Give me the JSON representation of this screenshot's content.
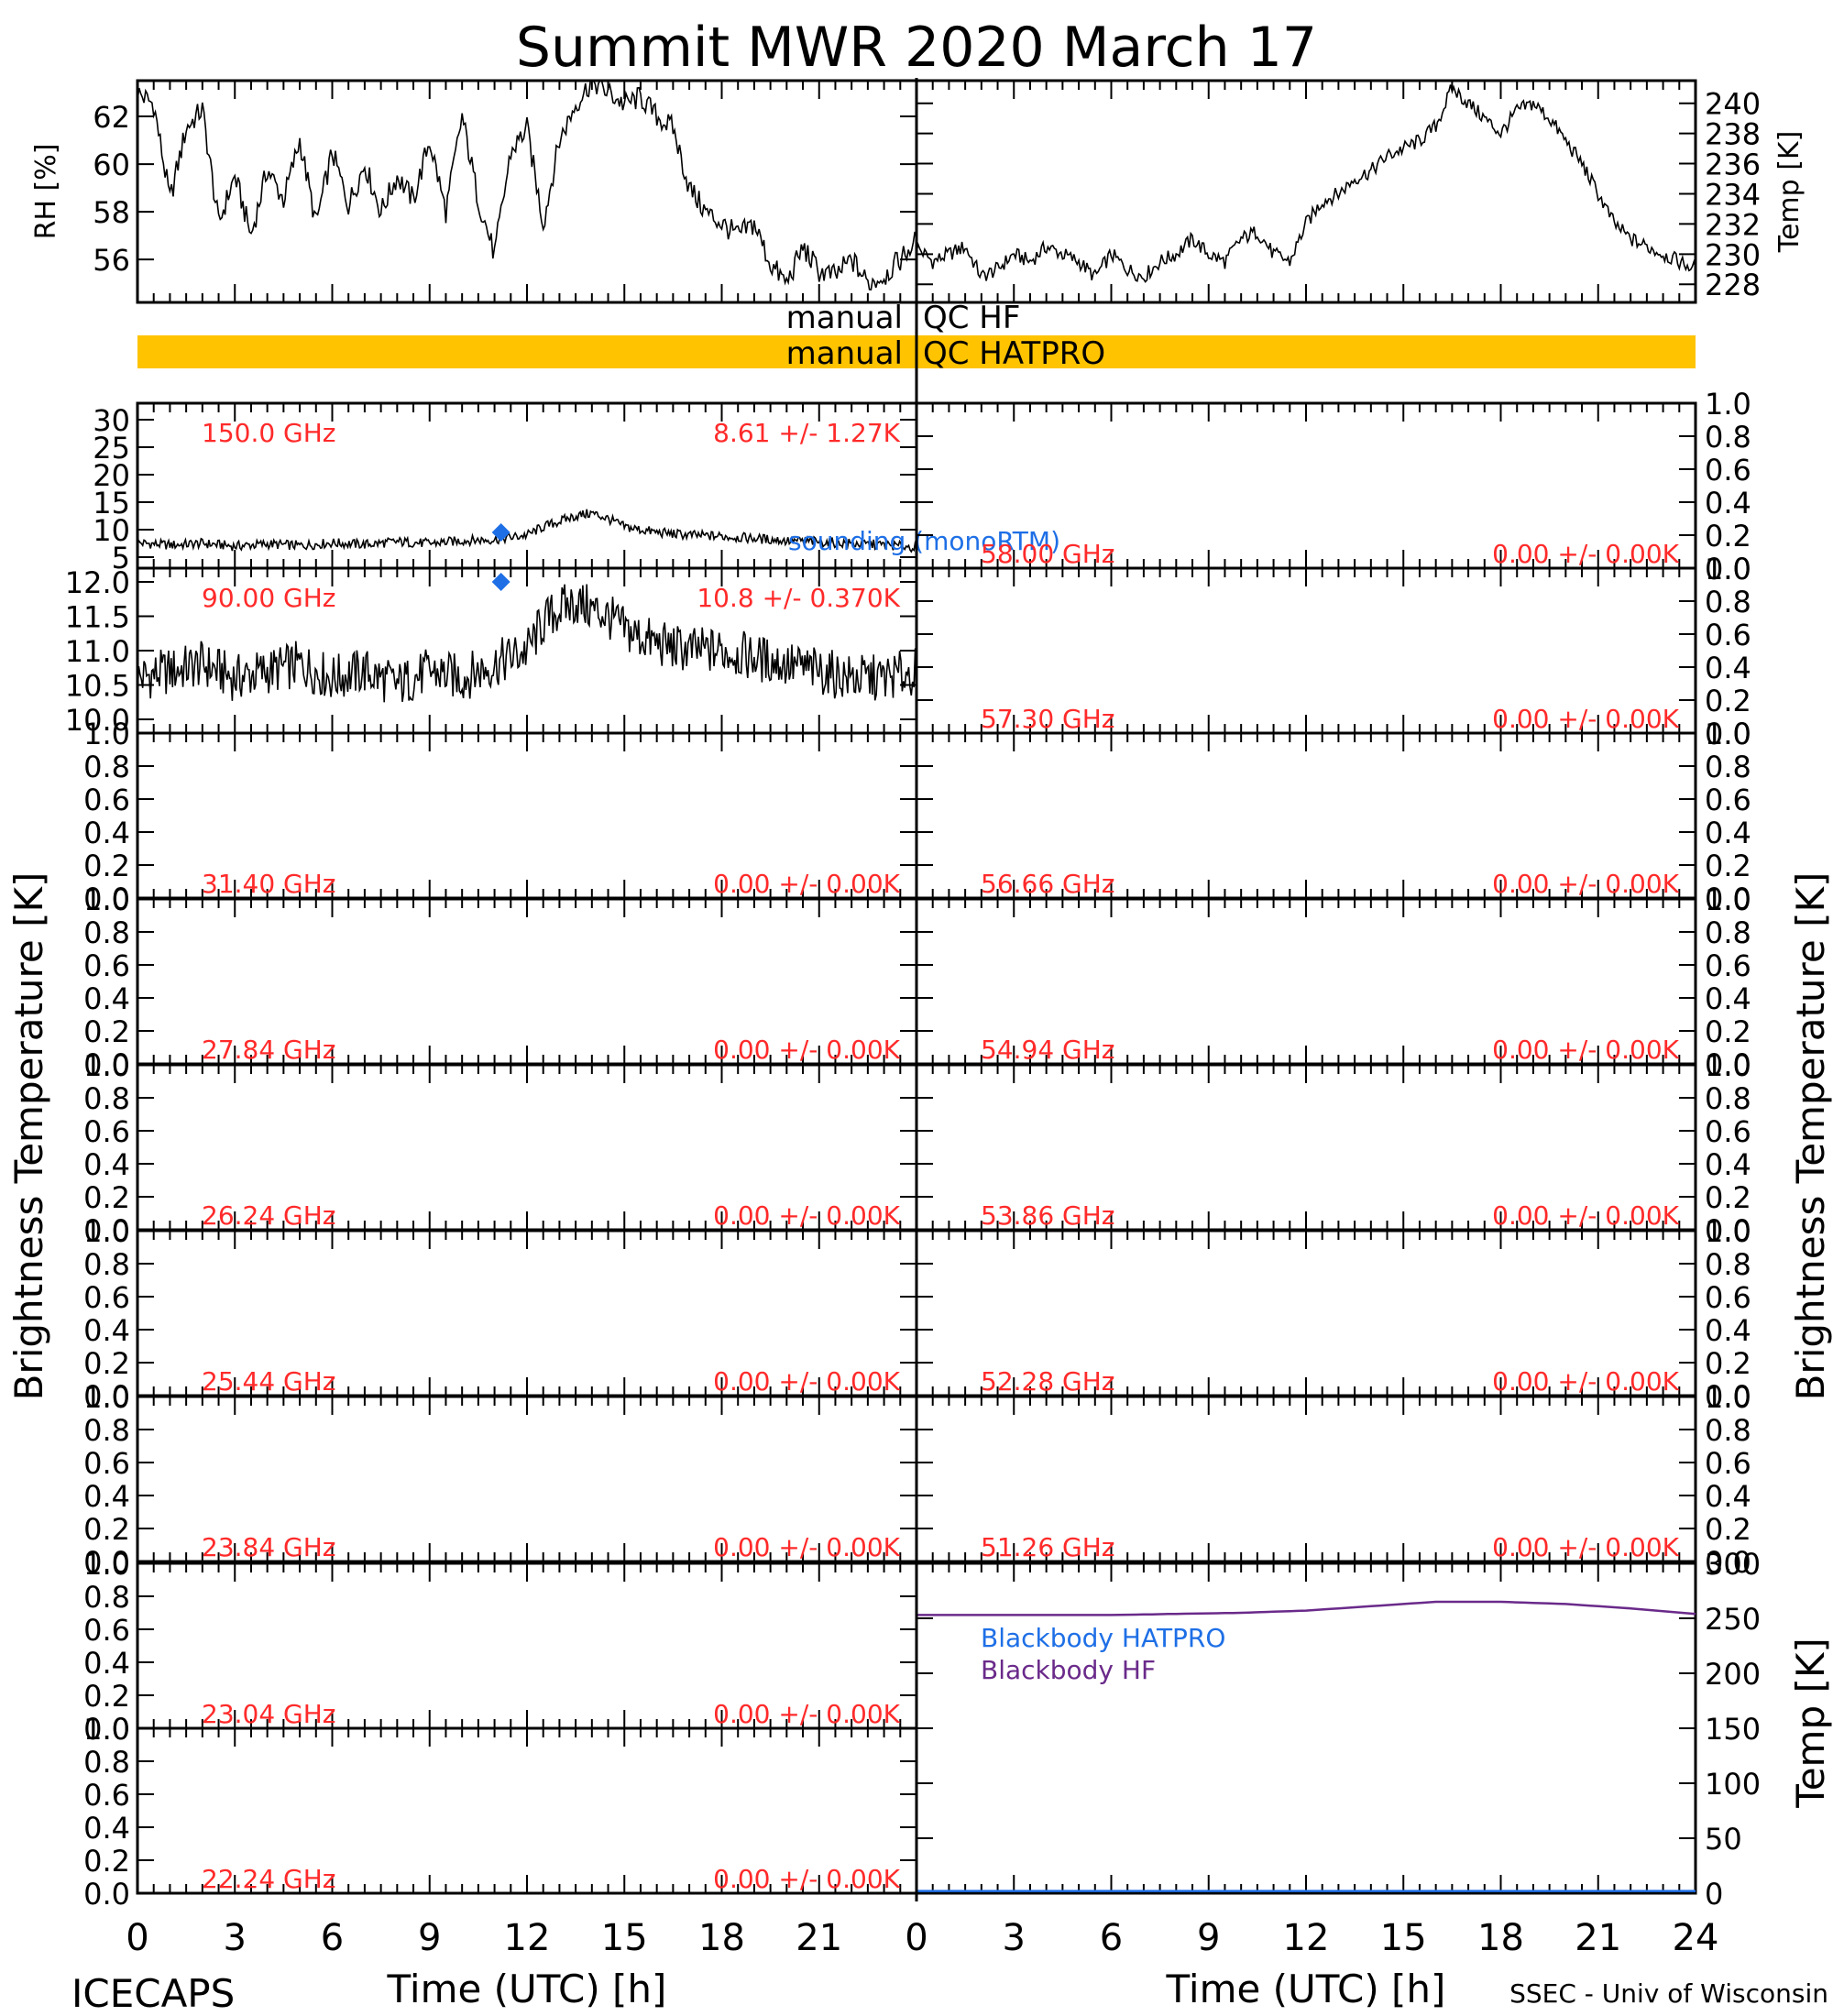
{
  "title": "Summit MWR 2020 March 17",
  "footer": {
    "left": "ICECAPS",
    "right": "SSEC - Univ of Wisconsin"
  },
  "xaxis": {
    "label": "Time (UTC) [h]",
    "ticks": [
      0,
      3,
      6,
      9,
      12,
      15,
      18,
      21,
      24
    ],
    "left_ticks_shown": [
      "0",
      "3",
      "6",
      "9",
      "12",
      "15",
      "18",
      "21"
    ],
    "right_ticks_shown": [
      "0",
      "3",
      "6",
      "9",
      "12",
      "15",
      "18",
      "21",
      "24"
    ]
  },
  "left_ylabel": "Brightness Temperature [K]",
  "right_ylabel": "Brightness Temperature [K]",
  "qc": {
    "hf_left": "manual",
    "hf_right": "QC HF",
    "hatpro_left": "manual",
    "hatpro_right": "QC HATPRO",
    "hatpro_color": "#FFC300"
  },
  "colors": {
    "annotation": "#FF2A2A",
    "sounding": "#1E6FE6",
    "blackbody_hf": "#6A2A8A",
    "blackbody_hatpro": "#1E6FE6",
    "trace": "#000000"
  },
  "chart_data": [
    {
      "id": "rh",
      "type": "line",
      "ylabel": "RH [%]",
      "ylim": [
        54.2,
        63.5
      ],
      "yticks": [
        56,
        58,
        60,
        62
      ],
      "x": [
        0,
        0.5,
        1,
        1.5,
        2,
        2.5,
        3,
        3.5,
        4,
        4.5,
        5,
        5.5,
        6,
        6.5,
        7,
        7.5,
        8,
        8.5,
        9,
        9.5,
        10,
        10.5,
        11,
        11.5,
        12,
        12.5,
        13,
        13.5,
        14,
        14.5,
        15,
        15.5,
        16,
        16.5,
        17,
        17.5,
        18,
        18.5,
        19,
        19.5,
        20,
        20.5,
        21,
        21.5,
        22,
        22.5,
        23,
        23.5,
        24
      ],
      "values": [
        63.0,
        62.5,
        58.5,
        61.5,
        62.3,
        57.5,
        59.5,
        57.0,
        59.8,
        58.5,
        61.0,
        57.5,
        60.5,
        58.3,
        60.0,
        58.0,
        59.5,
        58.5,
        61.0,
        58.0,
        62.0,
        58.5,
        56.2,
        60.5,
        61.5,
        57.5,
        61.0,
        62.5,
        63.5,
        63.0,
        62.5,
        62.8,
        62.0,
        61.5,
        59.0,
        58.0,
        57.5,
        57.0,
        57.5,
        55.8,
        55.0,
        56.5,
        55.5,
        55.3,
        56.0,
        55.0,
        55.3,
        56.0,
        56.8
      ]
    },
    {
      "id": "temp",
      "type": "line",
      "ylabel": "Temp [K]",
      "ylim": [
        226.8,
        241.5
      ],
      "yticks": [
        228,
        230,
        232,
        234,
        236,
        238,
        240
      ],
      "x": [
        0,
        0.5,
        1,
        1.5,
        2,
        2.5,
        3,
        3.5,
        4,
        4.5,
        5,
        5.5,
        6,
        6.5,
        7,
        7.5,
        8,
        8.5,
        9,
        9.5,
        10,
        10.5,
        11,
        11.5,
        12,
        12.5,
        13,
        13.5,
        14,
        14.5,
        15,
        15.5,
        16,
        16.5,
        17,
        17.5,
        18,
        18.5,
        19,
        19.5,
        20,
        20.5,
        21,
        21.5,
        22,
        22.5,
        23,
        23.5,
        24
      ],
      "values": [
        230.5,
        229.5,
        230.0,
        230.5,
        228.5,
        229.0,
        230.0,
        229.5,
        230.5,
        230.0,
        229.5,
        228.5,
        230.0,
        229.0,
        228.5,
        229.5,
        230.0,
        231.0,
        230.0,
        229.5,
        231.0,
        231.5,
        230.0,
        229.5,
        232.0,
        233.5,
        234.0,
        235.0,
        235.5,
        236.5,
        237.0,
        237.5,
        238.5,
        241.0,
        240.0,
        239.0,
        238.0,
        239.5,
        240.0,
        239.0,
        237.5,
        236.0,
        234.0,
        232.0,
        231.0,
        230.5,
        230.0,
        229.5,
        229.0
      ]
    },
    {
      "id": "ch150",
      "type": "line",
      "ylim": [
        3,
        33
      ],
      "yticks": [
        5,
        10,
        15,
        20,
        25,
        30
      ],
      "freq_label": "150.0 GHz",
      "stat_label": "8.61 +/-  1.27K",
      "extra_label": "sounding (monoRTM)",
      "sounding_point": {
        "x": 11.2,
        "y": 9.5
      },
      "x": [
        0,
        1,
        2,
        3,
        4,
        5,
        6,
        7,
        8,
        9,
        10,
        11,
        12,
        12.5,
        13,
        13.5,
        14,
        14.5,
        15,
        16,
        17,
        18,
        19,
        20,
        21,
        22,
        23,
        24
      ],
      "values": [
        7.6,
        7.2,
        7.5,
        7.0,
        7.4,
        7.1,
        7.6,
        7.3,
        7.8,
        7.5,
        8.0,
        8.2,
        9.0,
        10.5,
        11.5,
        12.5,
        13.0,
        12.0,
        10.5,
        9.5,
        9.0,
        8.8,
        8.4,
        8.0,
        7.8,
        7.5,
        7.2,
        6.8
      ]
    },
    {
      "id": "ch90",
      "type": "line",
      "ylim": [
        9.8,
        12.2
      ],
      "yticks": [
        10.0,
        10.5,
        11.0,
        11.5,
        12.0
      ],
      "freq_label": "90.00 GHz",
      "stat_label": "10.8 +/- 0.370K",
      "sounding_point": {
        "x": 11.2,
        "y": 12.0
      },
      "x": [
        0,
        1,
        2,
        3,
        4,
        5,
        6,
        7,
        8,
        9,
        10,
        11,
        12,
        12.5,
        13,
        13.5,
        14,
        14.5,
        15,
        16,
        17,
        18,
        19,
        20,
        21,
        22,
        23,
        24
      ],
      "values": [
        10.6,
        10.7,
        10.8,
        10.6,
        10.7,
        10.8,
        10.6,
        10.7,
        10.5,
        10.7,
        10.6,
        10.8,
        11.0,
        11.4,
        11.6,
        11.7,
        11.6,
        11.5,
        11.3,
        11.1,
        11.0,
        11.0,
        10.9,
        10.8,
        10.7,
        10.6,
        10.6,
        10.7
      ]
    },
    {
      "id": "ch3140",
      "type": "line",
      "ylim": [
        0,
        1
      ],
      "yticks": [
        0.0,
        0.2,
        0.4,
        0.6,
        0.8,
        1.0
      ],
      "freq_label": "31.40 GHz",
      "stat_label": "0.00 +/-  0.00K",
      "values": []
    },
    {
      "id": "ch2784",
      "type": "line",
      "ylim": [
        0,
        1
      ],
      "yticks": [
        0.0,
        0.2,
        0.4,
        0.6,
        0.8,
        1.0
      ],
      "freq_label": "27.84 GHz",
      "stat_label": "0.00 +/-  0.00K",
      "values": []
    },
    {
      "id": "ch2624",
      "type": "line",
      "ylim": [
        0,
        1
      ],
      "yticks": [
        0.0,
        0.2,
        0.4,
        0.6,
        0.8,
        1.0
      ],
      "freq_label": "26.24 GHz",
      "stat_label": "0.00 +/-  0.00K",
      "values": []
    },
    {
      "id": "ch2544",
      "type": "line",
      "ylim": [
        0,
        1
      ],
      "yticks": [
        0.0,
        0.2,
        0.4,
        0.6,
        0.8,
        1.0
      ],
      "freq_label": "25.44 GHz",
      "stat_label": "0.00 +/-  0.00K",
      "values": []
    },
    {
      "id": "ch2384",
      "type": "line",
      "ylim": [
        0,
        1
      ],
      "yticks": [
        0.0,
        0.2,
        0.4,
        0.6,
        0.8,
        1.0
      ],
      "freq_label": "23.84 GHz",
      "stat_label": "0.00 +/-  0.00K",
      "values": []
    },
    {
      "id": "ch2304",
      "type": "line",
      "ylim": [
        0,
        1
      ],
      "yticks": [
        0.0,
        0.2,
        0.4,
        0.6,
        0.8,
        1.0
      ],
      "freq_label": "23.04 GHz",
      "stat_label": "0.00 +/-  0.00K",
      "values": []
    },
    {
      "id": "ch2224",
      "type": "line",
      "ylim": [
        0,
        1
      ],
      "yticks": [
        0.0,
        0.2,
        0.4,
        0.6,
        0.8,
        1.0
      ],
      "freq_label": "22.24 GHz",
      "stat_label": "0.00 +/-  0.00K",
      "values": []
    },
    {
      "id": "ch5800",
      "type": "line",
      "ylim": [
        0,
        1
      ],
      "yticks": [
        0.0,
        0.2,
        0.4,
        0.6,
        0.8,
        1.0
      ],
      "freq_label": "58.00 GHz",
      "stat_label": "0.00 +/-  0.00K",
      "values": []
    },
    {
      "id": "ch5730",
      "type": "line",
      "ylim": [
        0,
        1
      ],
      "yticks": [
        0.0,
        0.2,
        0.4,
        0.6,
        0.8,
        1.0
      ],
      "freq_label": "57.30 GHz",
      "stat_label": "0.00 +/-  0.00K",
      "values": []
    },
    {
      "id": "ch5666",
      "type": "line",
      "ylim": [
        0,
        1
      ],
      "yticks": [
        0.0,
        0.2,
        0.4,
        0.6,
        0.8,
        1.0
      ],
      "freq_label": "56.66 GHz",
      "stat_label": "0.00 +/-  0.00K",
      "values": []
    },
    {
      "id": "ch5494",
      "type": "line",
      "ylim": [
        0,
        1
      ],
      "yticks": [
        0.0,
        0.2,
        0.4,
        0.6,
        0.8,
        1.0
      ],
      "freq_label": "54.94 GHz",
      "stat_label": "0.00 +/-  0.00K",
      "values": []
    },
    {
      "id": "ch5386",
      "type": "line",
      "ylim": [
        0,
        1
      ],
      "yticks": [
        0.0,
        0.2,
        0.4,
        0.6,
        0.8,
        1.0
      ],
      "freq_label": "53.86 GHz",
      "stat_label": "0.00 +/-  0.00K",
      "values": []
    },
    {
      "id": "ch5228",
      "type": "line",
      "ylim": [
        0,
        1
      ],
      "yticks": [
        0.0,
        0.2,
        0.4,
        0.6,
        0.8,
        1.0
      ],
      "freq_label": "52.28 GHz",
      "stat_label": "0.00 +/-  0.00K",
      "values": []
    },
    {
      "id": "ch5126",
      "type": "line",
      "ylim": [
        0,
        1
      ],
      "yticks": [
        0.0,
        0.2,
        0.4,
        0.6,
        0.8,
        1.0
      ],
      "freq_label": "51.26 GHz",
      "stat_label": "0.00 +/-  0.00K",
      "values": []
    },
    {
      "id": "blackbody",
      "type": "line",
      "ylabel": "Temp [K]",
      "ylim": [
        0,
        300
      ],
      "yticks": [
        0,
        50,
        100,
        150,
        200,
        250,
        300
      ],
      "legend": [
        "Blackbody HATPRO",
        "Blackbody HF"
      ],
      "series": [
        {
          "name": "Blackbody HF",
          "x": [
            0,
            2,
            4,
            6,
            8,
            10,
            12,
            14,
            16,
            18,
            20,
            22,
            24
          ],
          "values": [
            253,
            253,
            253,
            253,
            254,
            255,
            257,
            261,
            265,
            265,
            263,
            259,
            254
          ]
        },
        {
          "name": "Blackbody HATPRO",
          "x": [
            0,
            24
          ],
          "values": [
            2,
            2
          ]
        }
      ]
    }
  ]
}
